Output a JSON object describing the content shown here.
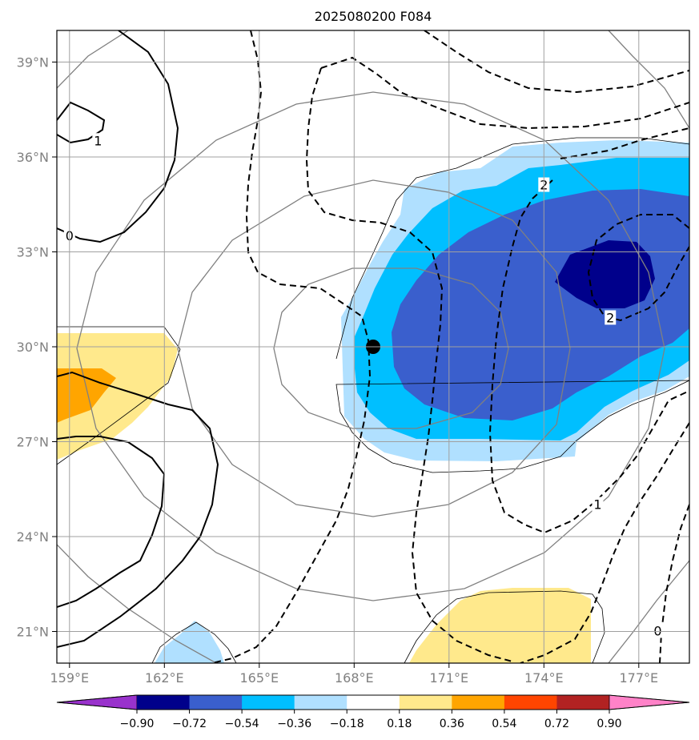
{
  "chart_data": {
    "type": "contour_map",
    "title": "2025080200 F084",
    "x_ticks": [
      {
        "value": 159,
        "label": "159°E"
      },
      {
        "value": 162,
        "label": "162°E"
      },
      {
        "value": 165,
        "label": "165°E"
      },
      {
        "value": 168,
        "label": "168°E"
      },
      {
        "value": 171,
        "label": "171°E"
      },
      {
        "value": 174,
        "label": "174°E"
      },
      {
        "value": 177,
        "label": "177°E"
      }
    ],
    "y_ticks": [
      {
        "value": 21,
        "label": "21°N"
      },
      {
        "value": 24,
        "label": "24°N"
      },
      {
        "value": 27,
        "label": "27°N"
      },
      {
        "value": 30,
        "label": "30°N"
      },
      {
        "value": 33,
        "label": "33°N"
      },
      {
        "value": 36,
        "label": "36°N"
      },
      {
        "value": 39,
        "label": "39°N"
      }
    ],
    "xlim": [
      158.6,
      178.6
    ],
    "ylim": [
      20.0,
      40.0
    ],
    "grid": true,
    "center_marker": {
      "lon": 168.6,
      "lat": 30.0
    },
    "colorbar": {
      "boundaries": [
        "-0.90",
        "-0.72",
        "-0.54",
        "-0.36",
        "-0.18",
        "0.18",
        "0.36",
        "0.54",
        "0.72",
        "0.90"
      ],
      "colors": [
        "#9932cc",
        "#00008b",
        "#3a5fcd",
        "#00bfff",
        "#b0e0ff",
        "#ffffff",
        "#ffe98c",
        "#ffa500",
        "#ff4500",
        "#b22222",
        "#ff82c8"
      ],
      "extend": "both"
    },
    "contour_labels": [
      {
        "text": "1",
        "lon": 159.9,
        "lat": 36.5
      },
      {
        "text": "0",
        "lon": 159.0,
        "lat": 33.5
      },
      {
        "text": "2",
        "lon": 174.0,
        "lat": 35.1
      },
      {
        "text": "2",
        "lon": 176.1,
        "lat": 30.9
      },
      {
        "text": "1",
        "lon": 175.7,
        "lat": 25.0
      },
      {
        "text": "0",
        "lon": 177.6,
        "lat": 21.0
      }
    ]
  }
}
